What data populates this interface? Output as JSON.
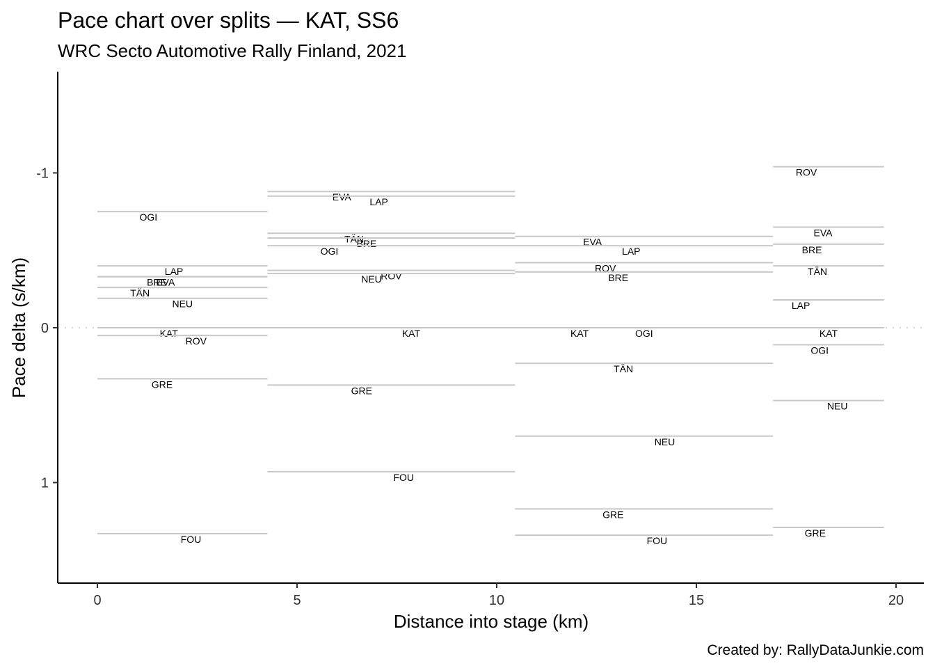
{
  "chart_data": {
    "type": "line",
    "title": "Pace chart over splits — KAT, SS6",
    "subtitle": "WRC Secto Automotive Rally Finland, 2021",
    "xlabel": "Distance into stage (km)",
    "ylabel": "Pace delta (s/km)",
    "caption": "Created by: RallyDataJunkie.com",
    "xlim": [
      -1,
      20.7
    ],
    "ylim": [
      1.65,
      -1.65
    ],
    "y_reversed": true,
    "x_ticks": [
      0,
      5,
      10,
      15,
      20
    ],
    "y_ticks": [
      -1,
      0,
      1
    ],
    "reference_line": 0,
    "grid": false,
    "splits": [
      {
        "start": 0,
        "end": 4.26,
        "rows": [
          {
            "driver": "OGI",
            "pace": -0.75
          },
          {
            "driver": "LAP",
            "pace": -0.4
          },
          {
            "driver": "BRE",
            "pace": -0.33
          },
          {
            "driver": "EVA",
            "pace": -0.33
          },
          {
            "driver": "TÄN",
            "pace": -0.26
          },
          {
            "driver": "NEU",
            "pace": -0.19
          },
          {
            "driver": "KAT",
            "pace": 0.0
          },
          {
            "driver": "ROV",
            "pace": 0.05
          },
          {
            "driver": "GRE",
            "pace": 0.33
          },
          {
            "driver": "FOU",
            "pace": 1.33
          }
        ]
      },
      {
        "start": 4.26,
        "end": 10.46,
        "rows": [
          {
            "driver": "EVA",
            "pace": -0.88
          },
          {
            "driver": "LAP",
            "pace": -0.85
          },
          {
            "driver": "TÄN",
            "pace": -0.61
          },
          {
            "driver": "BRE",
            "pace": -0.58
          },
          {
            "driver": "OGI",
            "pace": -0.53
          },
          {
            "driver": "ROV",
            "pace": -0.37
          },
          {
            "driver": "NEU",
            "pace": -0.35
          },
          {
            "driver": "KAT",
            "pace": 0.0
          },
          {
            "driver": "GRE",
            "pace": 0.37
          },
          {
            "driver": "FOU",
            "pace": 0.93
          }
        ]
      },
      {
        "start": 10.46,
        "end": 16.92,
        "rows": [
          {
            "driver": "EVA",
            "pace": -0.59
          },
          {
            "driver": "LAP",
            "pace": -0.53
          },
          {
            "driver": "ROV",
            "pace": -0.42
          },
          {
            "driver": "BRE",
            "pace": -0.36
          },
          {
            "driver": "KAT",
            "pace": 0.0
          },
          {
            "driver": "OGI",
            "pace": 0.0
          },
          {
            "driver": "TÄN",
            "pace": 0.23
          },
          {
            "driver": "NEU",
            "pace": 0.7
          },
          {
            "driver": "GRE",
            "pace": 1.17
          },
          {
            "driver": "FOU",
            "pace": 1.34
          }
        ]
      },
      {
        "start": 16.92,
        "end": 19.7,
        "rows": [
          {
            "driver": "ROV",
            "pace": -1.04
          },
          {
            "driver": "EVA",
            "pace": -0.65
          },
          {
            "driver": "BRE",
            "pace": -0.54
          },
          {
            "driver": "TÄN",
            "pace": -0.4
          },
          {
            "driver": "LAP",
            "pace": -0.18
          },
          {
            "driver": "KAT",
            "pace": 0.0
          },
          {
            "driver": "OGI",
            "pace": 0.11
          },
          {
            "driver": "NEU",
            "pace": 0.47
          },
          {
            "driver": "GRE",
            "pace": 1.29
          }
        ]
      }
    ],
    "colors": {
      "segment": "#c8c8c8",
      "reference": "#cfcfcf",
      "axis": "#000000"
    }
  }
}
